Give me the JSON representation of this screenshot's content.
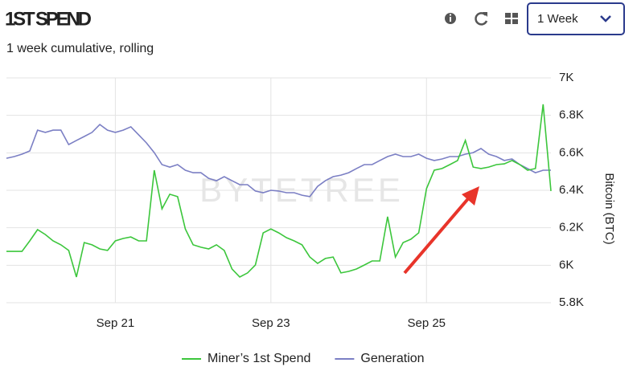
{
  "header": {
    "title": "1ST SPEND",
    "subtitle": "1 week cumulative, rolling",
    "period": "1 Week"
  },
  "chart_data": {
    "type": "line",
    "watermark": "BYTETREE",
    "y_label": "Bitcoin (BTC)",
    "x": [
      19.6,
      19.7,
      19.8,
      19.9,
      20.0,
      20.1,
      20.2,
      20.3,
      20.4,
      20.5,
      20.6,
      20.7,
      20.8,
      20.9,
      21.0,
      21.1,
      21.2,
      21.3,
      21.4,
      21.5,
      21.6,
      21.7,
      21.8,
      21.9,
      22.0,
      22.1,
      22.2,
      22.3,
      22.4,
      22.5,
      22.6,
      22.7,
      22.8,
      22.9,
      23.0,
      23.1,
      23.2,
      23.3,
      23.4,
      23.5,
      23.6,
      23.7,
      23.8,
      23.9,
      24.0,
      24.1,
      24.2,
      24.3,
      24.4,
      24.5,
      24.6,
      24.7,
      24.8,
      24.9,
      25.0,
      25.1,
      25.2,
      25.3,
      25.4,
      25.5,
      25.6,
      25.7,
      25.8,
      25.9,
      26.0,
      26.1,
      26.2,
      26.3,
      26.4,
      26.5,
      26.6
    ],
    "xlim": [
      19.6,
      26.6
    ],
    "xticks": [
      {
        "value": 21,
        "label": "Sep 21"
      },
      {
        "value": 23,
        "label": "Sep 23"
      },
      {
        "value": 25,
        "label": "Sep 25"
      }
    ],
    "ylim": [
      5800,
      7000
    ],
    "yticks": [
      {
        "value": 5800,
        "label": "5.8K"
      },
      {
        "value": 6000,
        "label": "6K"
      },
      {
        "value": 6200,
        "label": "6.2K"
      },
      {
        "value": 6400,
        "label": "6.4K"
      },
      {
        "value": 6600,
        "label": "6.6K"
      },
      {
        "value": 6800,
        "label": "6.8K"
      },
      {
        "value": 7000,
        "label": "7K"
      }
    ],
    "grid": true,
    "series": [
      {
        "name": "Miner’s 1st Spend",
        "color": "#3cc63c",
        "values": [
          6074,
          6074,
          6074,
          6130,
          6190,
          6164,
          6130,
          6109,
          6079,
          5937,
          6121,
          6109,
          6087,
          6079,
          6130,
          6143,
          6151,
          6130,
          6130,
          6507,
          6301,
          6379,
          6366,
          6194,
          6109,
          6096,
          6087,
          6109,
          6079,
          5980,
          5937,
          5959,
          6001,
          6173,
          6194,
          6173,
          6147,
          6130,
          6109,
          6044,
          6010,
          6036,
          6044,
          5959,
          5967,
          5980,
          6001,
          6023,
          6023,
          6259,
          6044,
          6121,
          6139,
          6173,
          6409,
          6507,
          6516,
          6537,
          6559,
          6666,
          6524,
          6516,
          6524,
          6537,
          6541,
          6559,
          6537,
          6507,
          6516,
          6859,
          6396
        ]
      },
      {
        "name": "Generation",
        "color": "#7b7fc4",
        "values": [
          6571,
          6580,
          6593,
          6610,
          6721,
          6709,
          6721,
          6721,
          6644,
          6666,
          6687,
          6709,
          6751,
          6721,
          6709,
          6721,
          6739,
          6696,
          6653,
          6601,
          6537,
          6524,
          6537,
          6507,
          6494,
          6494,
          6464,
          6451,
          6473,
          6451,
          6430,
          6430,
          6396,
          6387,
          6400,
          6396,
          6387,
          6387,
          6374,
          6366,
          6421,
          6451,
          6473,
          6481,
          6494,
          6516,
          6537,
          6537,
          6559,
          6580,
          6593,
          6580,
          6580,
          6593,
          6571,
          6559,
          6567,
          6580,
          6580,
          6593,
          6601,
          6623,
          6593,
          6580,
          6559,
          6567,
          6537,
          6516,
          6494,
          6507,
          6507
        ]
      }
    ]
  }
}
